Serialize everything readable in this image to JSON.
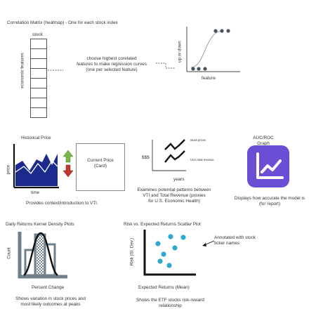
{
  "colors": {
    "navy": "#1b2a8c",
    "purple": "#6a4fd6",
    "dark": "#222222",
    "teal_gray": "#5d6f7a",
    "scatter": "#2fa7cf",
    "green": "#7ab648",
    "red": "#c0392b"
  },
  "heatmap": {
    "title": "Correlation Matrix (heatmap) - One for each stock index",
    "column_label": "stock",
    "row_label": "economic features",
    "note": "choose highest corelated\nfeatures to make regression curves\n(one per selected feature)",
    "curve_ylabel": "up or down",
    "curve_xlabel": "feature"
  },
  "historical": {
    "title": "Historical Price",
    "ylabel": "price",
    "xlabel": "time",
    "card_label": "Current Price\n(Card)",
    "caption": "Provides context/introduction to VTI."
  },
  "patterns": {
    "ylabel": "$$$",
    "line1": "stock prices",
    "line2": "USA total revenue",
    "xlabel": "years",
    "caption": "Examines potential patterns between\nVTI and Total Revenue (proxies\nfor U.S. Economic Health)"
  },
  "auc": {
    "title": "AUC/ROC\nGraph",
    "caption": "Displays how accurate the model is\n(for report)"
  },
  "kde": {
    "title": "Daily Returns Kernel Density Plots",
    "ylabel": "Count",
    "xlabel": "Percent Change",
    "caption": "Shows variation in stock prices and\nmost likely outcomes at peaks"
  },
  "scatter": {
    "title": "Risk vs. Expected Returns Scatter Plot",
    "ylabel": "Risk (St. Dev.)",
    "xlabel": "Expected Returns (Mean)",
    "annotation": "Annotated with stock\nticker names",
    "caption": "Shows the ETF stocks risk-reward\nrelationship"
  }
}
